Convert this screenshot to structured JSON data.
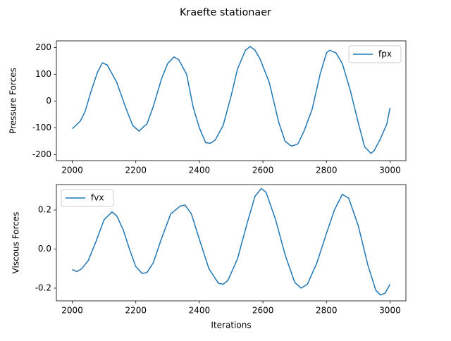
{
  "suptitle": "Kraefte stationaer",
  "chart_data": [
    {
      "type": "line",
      "ylabel": "Pressure Forces",
      "x": [
        2000,
        2025,
        2040,
        2060,
        2080,
        2095,
        2110,
        2140,
        2170,
        2190,
        2210,
        2225,
        2235,
        2255,
        2280,
        2300,
        2320,
        2335,
        2360,
        2380,
        2400,
        2420,
        2435,
        2450,
        2475,
        2500,
        2520,
        2545,
        2560,
        2575,
        2590,
        2620,
        2650,
        2670,
        2690,
        2710,
        2730,
        2755,
        2780,
        2800,
        2810,
        2830,
        2850,
        2875,
        2900,
        2920,
        2940,
        2950,
        2970,
        2990,
        3000
      ],
      "series": [
        {
          "name": "fpx",
          "color": "#1f77b4",
          "values": [
            -103,
            -75,
            -40,
            40,
            110,
            143,
            135,
            70,
            -30,
            -90,
            -112,
            -95,
            -85,
            -20,
            80,
            140,
            165,
            155,
            100,
            -20,
            -100,
            -155,
            -157,
            -145,
            -90,
            20,
            120,
            190,
            204,
            190,
            160,
            70,
            -80,
            -150,
            -168,
            -160,
            -110,
            -30,
            100,
            180,
            190,
            180,
            140,
            40,
            -80,
            -170,
            -195,
            -185,
            -140,
            -85,
            -25
          ]
        }
      ],
      "xlim": [
        1950,
        3050
      ],
      "xticks": [
        2000,
        2200,
        2400,
        2600,
        2800,
        3000
      ],
      "ylim": [
        -222,
        225
      ],
      "yticks": [
        -200,
        -100,
        0,
        100,
        200
      ],
      "legend": "upper right"
    },
    {
      "type": "line",
      "ylabel": "Viscous Forces",
      "xlabel": "Iterations",
      "x": [
        2000,
        2015,
        2030,
        2050,
        2075,
        2100,
        2125,
        2140,
        2160,
        2180,
        2200,
        2220,
        2235,
        2255,
        2280,
        2310,
        2340,
        2355,
        2375,
        2400,
        2430,
        2460,
        2475,
        2490,
        2520,
        2550,
        2575,
        2595,
        2610,
        2640,
        2670,
        2700,
        2720,
        2740,
        2770,
        2800,
        2825,
        2850,
        2870,
        2900,
        2930,
        2955,
        2970,
        2985,
        3000
      ],
      "series": [
        {
          "name": "fvx",
          "color": "#1f77b4",
          "values": [
            -0.105,
            -0.115,
            -0.1,
            -0.06,
            0.04,
            0.15,
            0.19,
            0.17,
            0.1,
            0.0,
            -0.09,
            -0.125,
            -0.12,
            -0.07,
            0.05,
            0.18,
            0.22,
            0.225,
            0.18,
            0.05,
            -0.1,
            -0.175,
            -0.18,
            -0.16,
            -0.05,
            0.13,
            0.27,
            0.31,
            0.29,
            0.15,
            -0.03,
            -0.17,
            -0.2,
            -0.18,
            -0.07,
            0.08,
            0.2,
            0.28,
            0.26,
            0.12,
            -0.08,
            -0.21,
            -0.235,
            -0.225,
            -0.18
          ]
        }
      ],
      "xlim": [
        1950,
        3050
      ],
      "xticks": [
        2000,
        2200,
        2400,
        2600,
        2800,
        3000
      ],
      "ylim": [
        -0.265,
        0.33
      ],
      "yticks": [
        -0.2,
        {
          "value": 0,
          "label": "0.0"
        },
        0.2
      ],
      "legend": "upper left"
    }
  ]
}
